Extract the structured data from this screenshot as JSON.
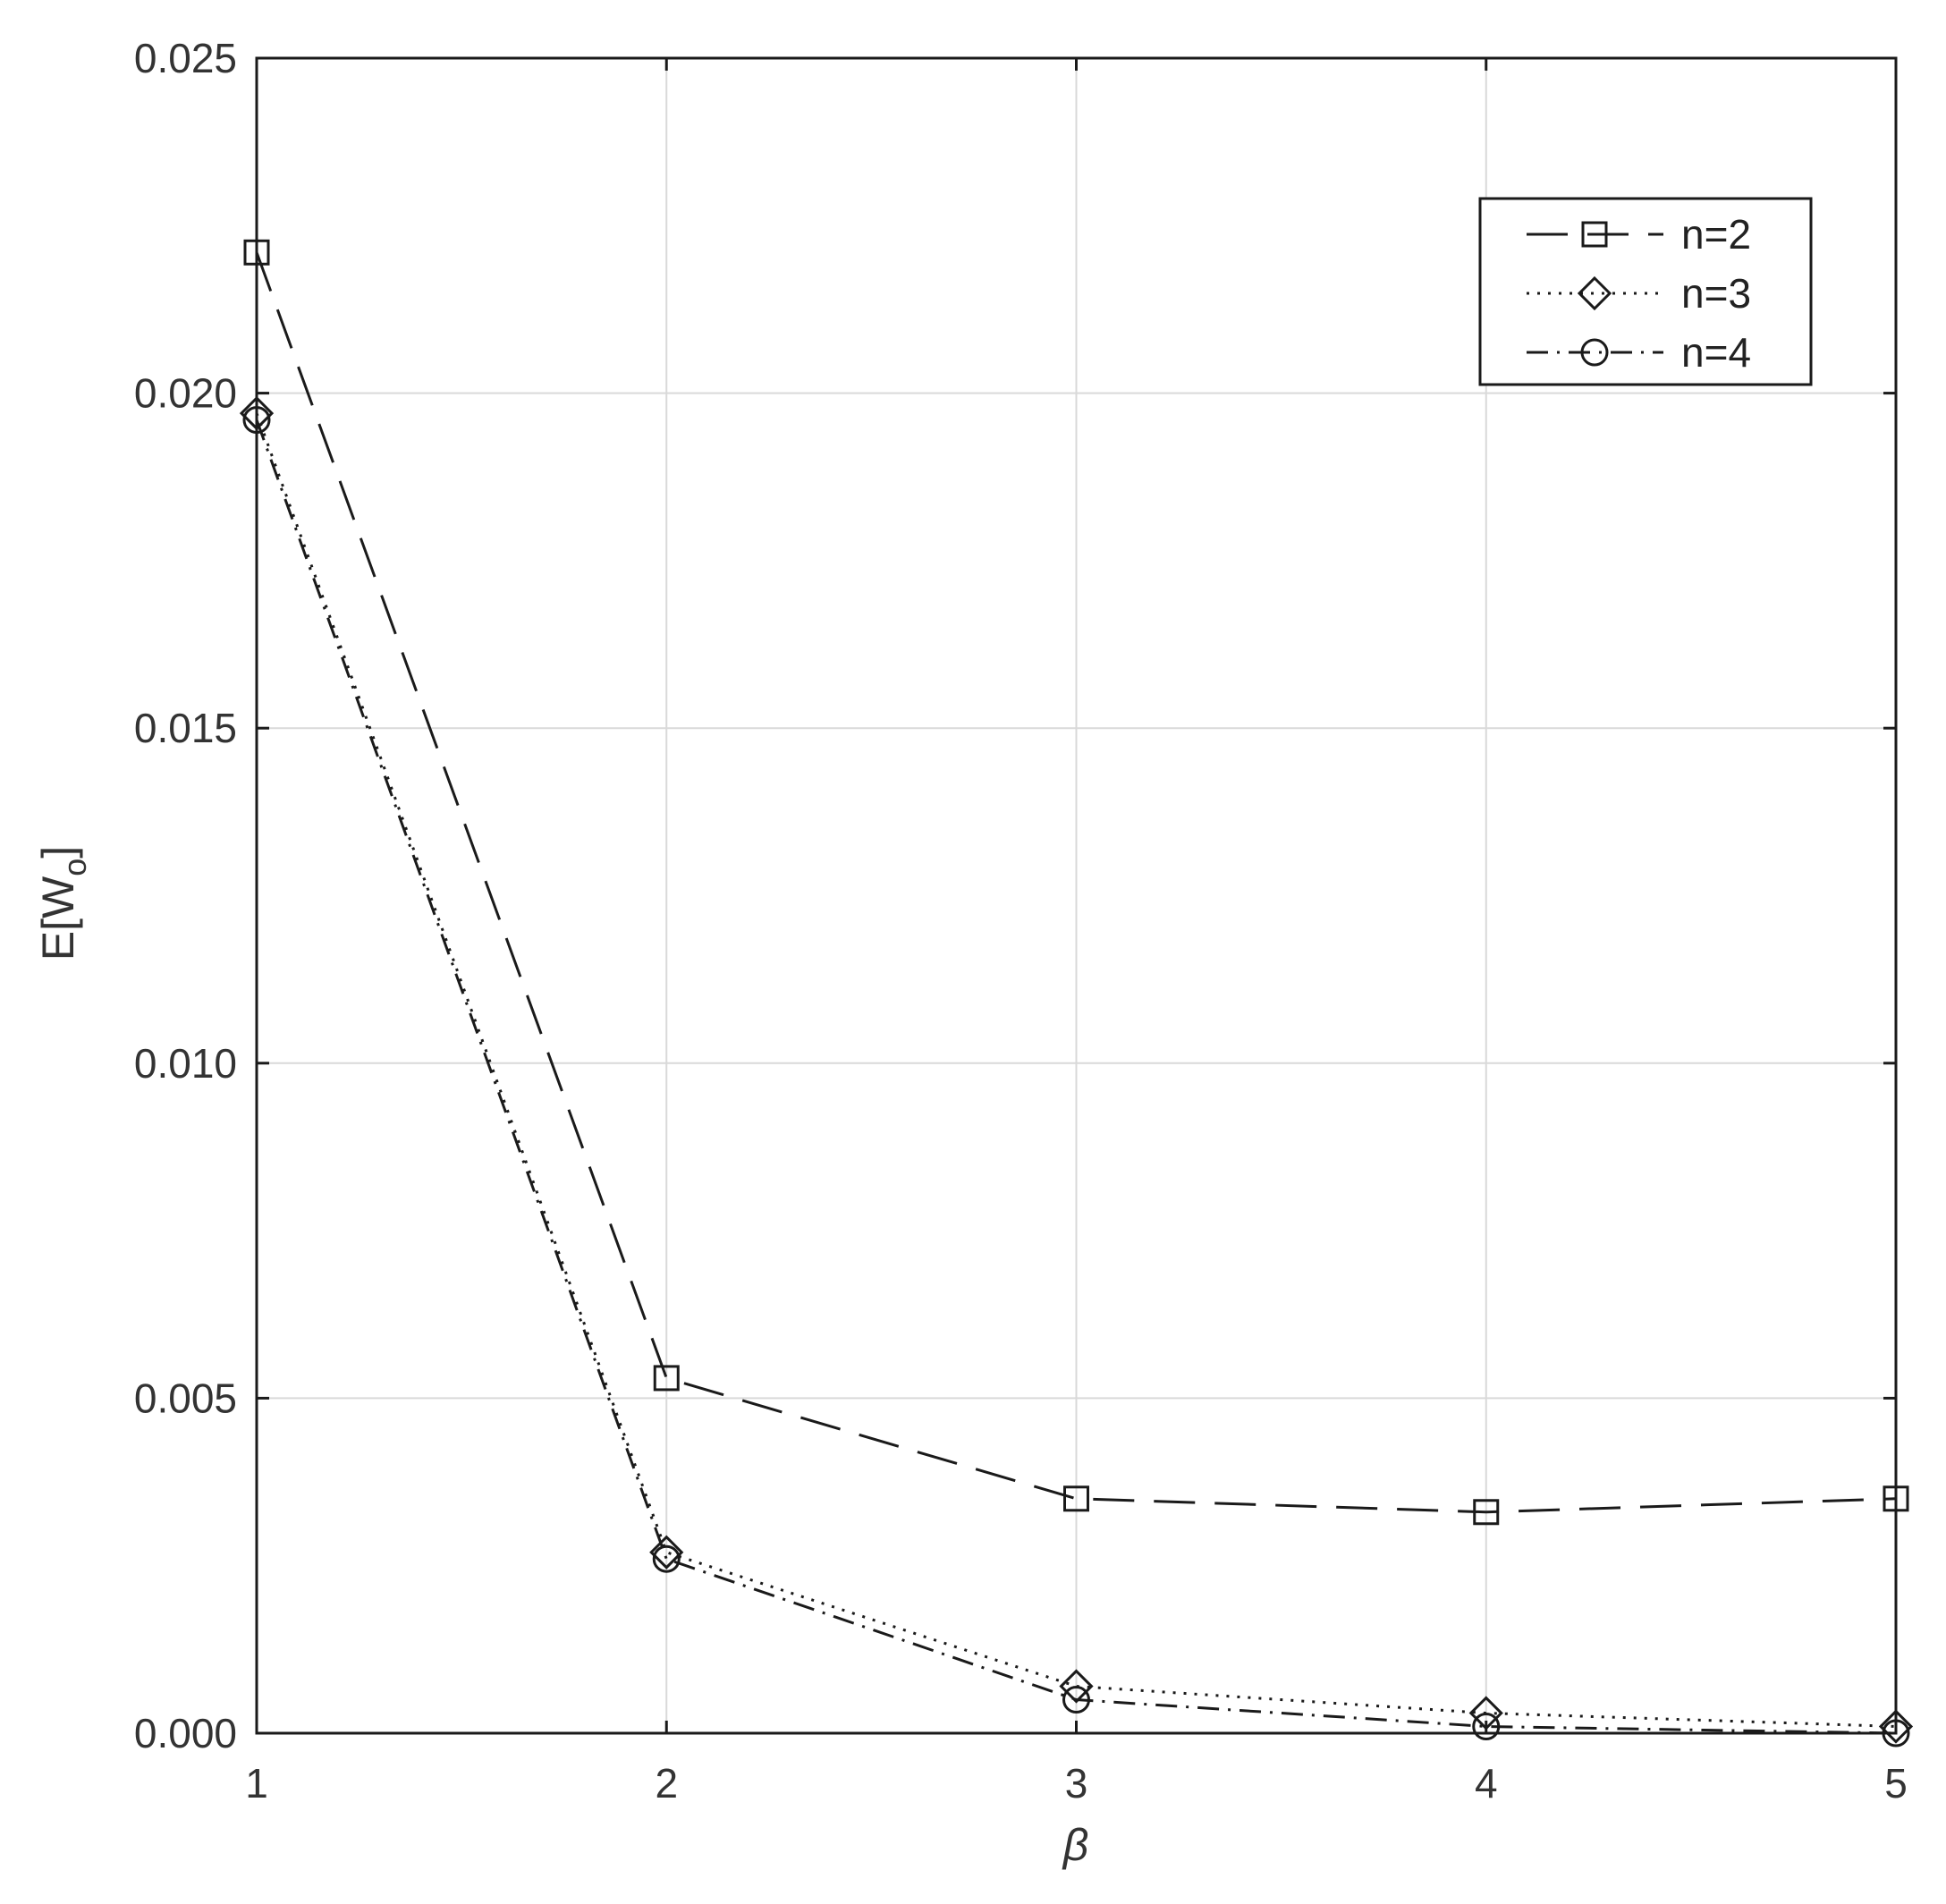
{
  "chart_data": {
    "type": "line",
    "xlabel": "β",
    "ylabel_main": "E[W",
    "ylabel_sub": "o",
    "ylabel_close": "]",
    "xlim": [
      1,
      5
    ],
    "ylim": [
      0,
      0.025
    ],
    "grid": true,
    "legend_position": "top-right",
    "x": [
      1,
      2,
      3,
      4,
      5
    ],
    "x_ticks": [
      1,
      2,
      3,
      4,
      5
    ],
    "x_tick_labels": [
      "1",
      "2",
      "3",
      "4",
      "5"
    ],
    "y_ticks": [
      0,
      0.005,
      0.01,
      0.015,
      0.02,
      0.025
    ],
    "y_tick_labels": [
      "0.000",
      "0.005",
      "0.010",
      "0.015",
      "0.020",
      "0.025"
    ],
    "series": [
      {
        "name": "n=2",
        "marker": "square",
        "dash": "long-dash",
        "values": [
          0.0221,
          0.0053,
          0.0035,
          0.0033,
          0.0035
        ]
      },
      {
        "name": "n=3",
        "marker": "diamond",
        "dash": "dotted",
        "values": [
          0.0197,
          0.0027,
          0.0007,
          0.0003,
          0.0001
        ]
      },
      {
        "name": "n=4",
        "marker": "circle",
        "dash": "dash-dot",
        "values": [
          0.0196,
          0.0026,
          0.0005,
          0.0001,
          0.0
        ]
      }
    ],
    "colors": {
      "line": "#1a1a1a",
      "grid": "#d9d9d9",
      "axes": "#1a1a1a",
      "text": "#333333"
    }
  }
}
